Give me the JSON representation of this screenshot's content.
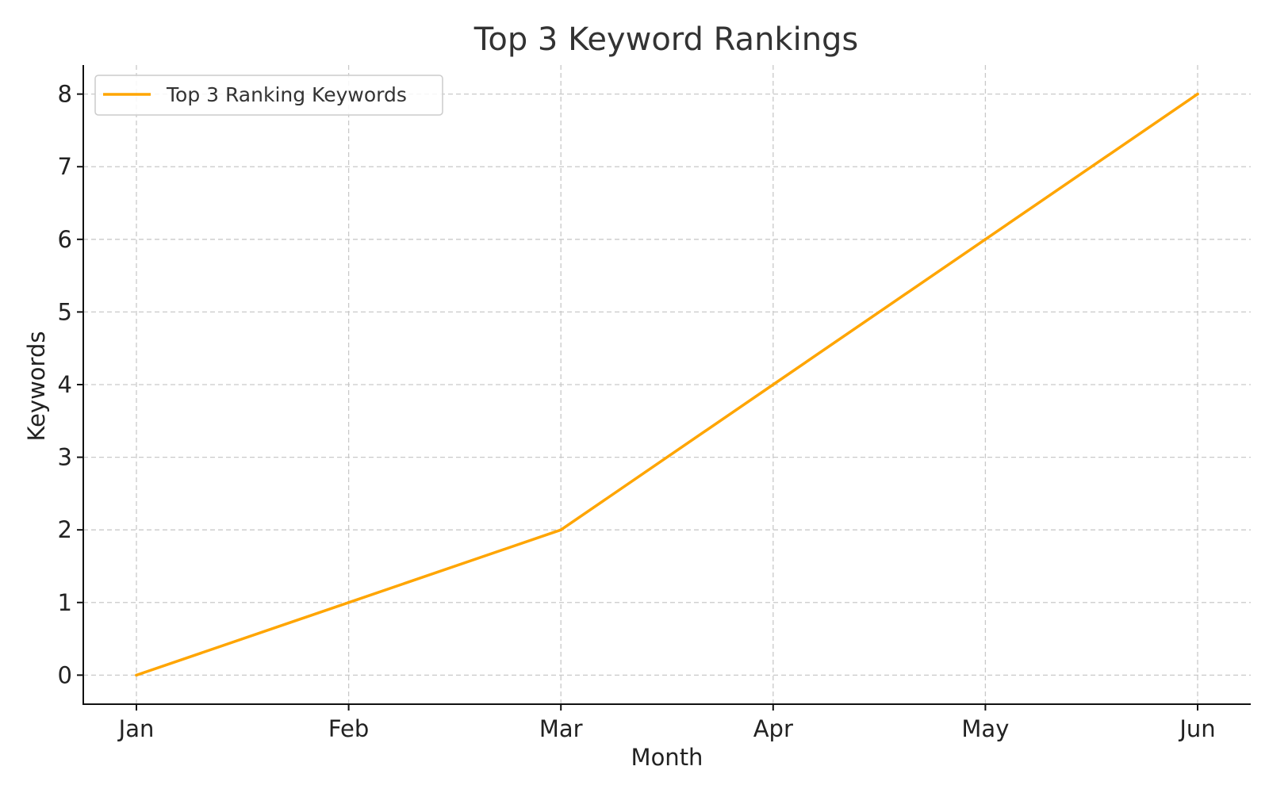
{
  "chart_data": {
    "type": "line",
    "title": "Top 3 Keyword Rankings",
    "xlabel": "Month",
    "ylabel": "Keywords",
    "categories": [
      "Jan",
      "Feb",
      "Mar",
      "Apr",
      "May",
      "Jun"
    ],
    "series": [
      {
        "name": "Top 3 Ranking Keywords",
        "values": [
          0,
          1,
          2,
          4,
          6,
          8
        ],
        "color": "#FFA500"
      }
    ],
    "yticks": [
      0,
      1,
      2,
      3,
      4,
      5,
      6,
      7,
      8
    ],
    "ylim": [
      -0.4,
      8.4
    ],
    "grid": true,
    "legend_position": "top-left"
  }
}
